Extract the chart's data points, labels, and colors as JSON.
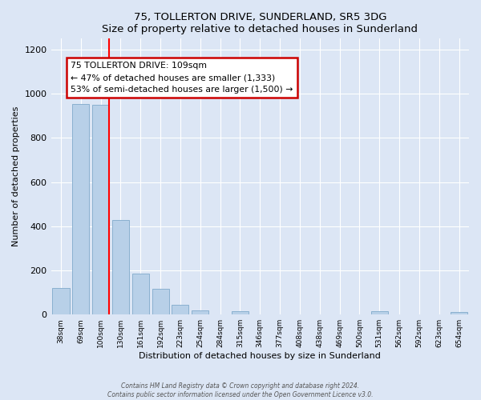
{
  "title": "75, TOLLERTON DRIVE, SUNDERLAND, SR5 3DG",
  "subtitle": "Size of property relative to detached houses in Sunderland",
  "xlabel": "Distribution of detached houses by size in Sunderland",
  "ylabel": "Number of detached properties",
  "bar_labels": [
    "38sqm",
    "69sqm",
    "100sqm",
    "130sqm",
    "161sqm",
    "192sqm",
    "223sqm",
    "254sqm",
    "284sqm",
    "315sqm",
    "346sqm",
    "377sqm",
    "408sqm",
    "438sqm",
    "469sqm",
    "500sqm",
    "531sqm",
    "562sqm",
    "592sqm",
    "623sqm",
    "654sqm"
  ],
  "bar_values": [
    120,
    955,
    950,
    430,
    185,
    115,
    45,
    20,
    0,
    15,
    0,
    0,
    0,
    0,
    0,
    0,
    15,
    0,
    0,
    0,
    10
  ],
  "bar_color": "#b8d0e8",
  "bar_edge_color": "#8ab0d0",
  "ylim": [
    0,
    1250
  ],
  "yticks": [
    0,
    200,
    400,
    600,
    800,
    1000,
    1200
  ],
  "annotation_title": "75 TOLLERTON DRIVE: 109sqm",
  "annotation_line1": "← 47% of detached houses are smaller (1,333)",
  "annotation_line2": "53% of semi-detached houses are larger (1,500) →",
  "annotation_box_color": "#ffffff",
  "annotation_box_edge": "#cc0000",
  "footer_line1": "Contains HM Land Registry data © Crown copyright and database right 2024.",
  "footer_line2": "Contains public sector information licensed under the Open Government Licence v3.0.",
  "background_color": "#dce6f5",
  "plot_background": "#dce6f5",
  "grid_color": "#ffffff"
}
